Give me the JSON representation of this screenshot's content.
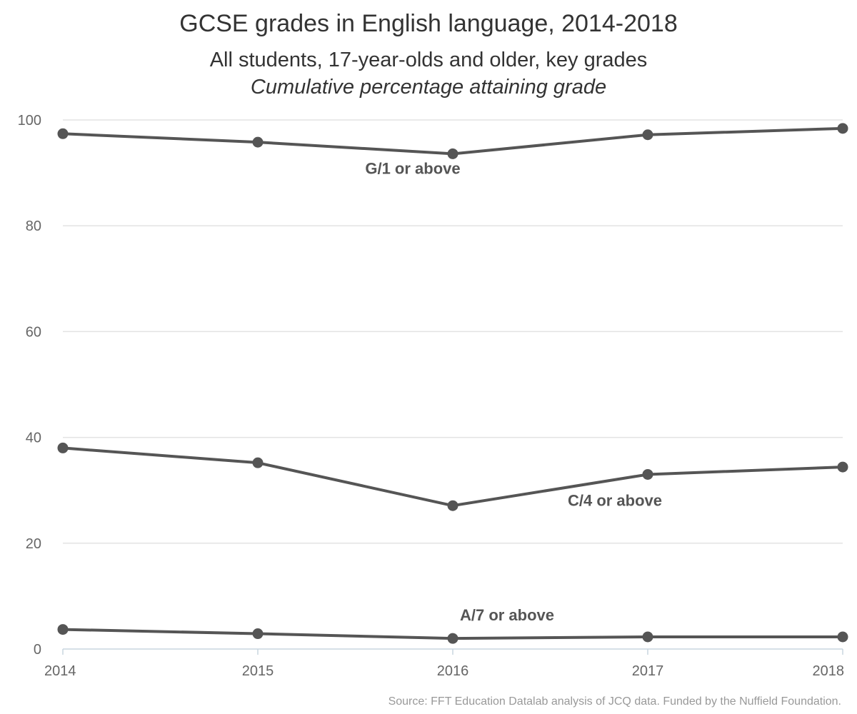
{
  "chart_data": {
    "type": "line",
    "title": "GCSE grades in English language, 2014-2018",
    "subtitle": "All students, 17-year-olds and older, key grades",
    "subtitle2": "Cumulative percentage attaining grade",
    "x": [
      "2014",
      "2015",
      "2016",
      "2017",
      "2018"
    ],
    "ylim": [
      0,
      100
    ],
    "yticks": [
      0,
      20,
      40,
      60,
      80,
      100
    ],
    "grid": true,
    "line_color": "#555555",
    "grid_color": "#e3e3e3",
    "axis_color": "#c8d6df",
    "series": [
      {
        "name": "G/1 or above",
        "values": [
          97.4,
          95.8,
          93.6,
          97.2,
          98.4
        ]
      },
      {
        "name": "C/4 or above",
        "values": [
          38.0,
          35.2,
          27.1,
          33.0,
          34.4
        ]
      },
      {
        "name": "A/7 or above",
        "values": [
          3.7,
          2.9,
          2.0,
          2.3,
          2.3
        ]
      }
    ]
  },
  "source": "Source: FFT Education Datalab analysis of JCQ data. Funded by the Nuffield Foundation."
}
